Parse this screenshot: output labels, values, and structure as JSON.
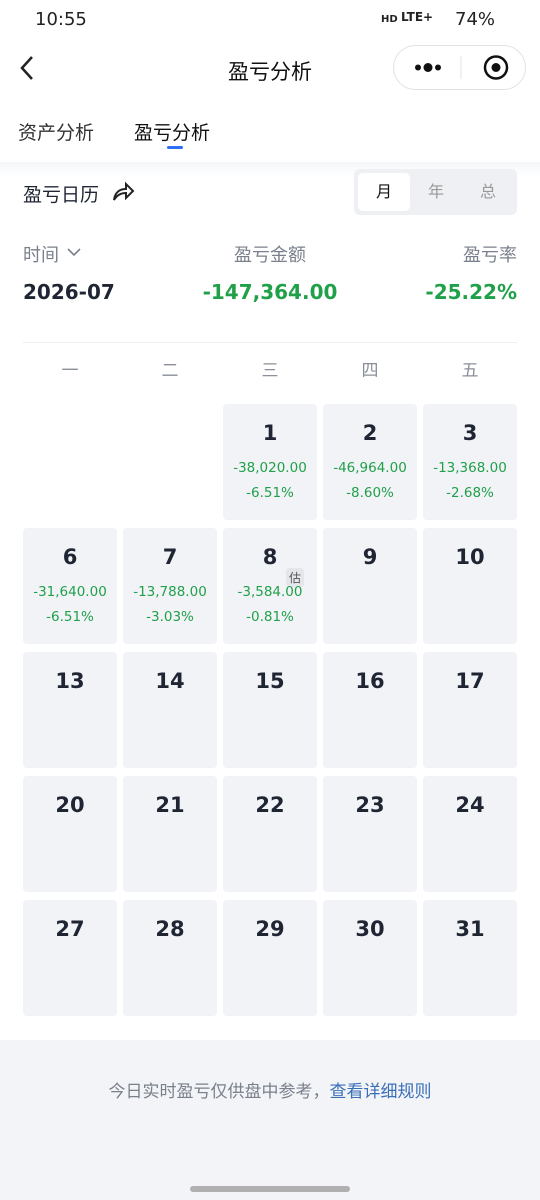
{
  "status_bar": {
    "time": "10:55",
    "hd": "HD",
    "network": "LTE+",
    "battery": "74%"
  },
  "nav": {
    "title": "盈亏分析"
  },
  "tabs": {
    "items": [
      "资产分析",
      "盈亏分析"
    ],
    "active": 1
  },
  "calendar_header": {
    "title": "盈亏日历",
    "periods": [
      "月",
      "年",
      "总"
    ],
    "active_period": 0
  },
  "summary": {
    "time_label": "时间",
    "amount_label": "盈亏金额",
    "rate_label": "盈亏率",
    "period": "2026-07",
    "amount": "-147,364.00",
    "rate": "-25.22%"
  },
  "weekdays": [
    "一",
    "二",
    "三",
    "四",
    "五"
  ],
  "days": [
    {
      "day": 1,
      "pnl": "-38,020.00",
      "rate": "-6.51%"
    },
    {
      "day": 2,
      "pnl": "-46,964.00",
      "rate": "-8.60%"
    },
    {
      "day": 3,
      "pnl": "-13,368.00",
      "rate": "-2.68%"
    },
    {
      "day": 6,
      "pnl": "-31,640.00",
      "rate": "-6.51%"
    },
    {
      "day": 7,
      "pnl": "-13,788.00",
      "rate": "-3.03%"
    },
    {
      "day": 8,
      "pnl": "-3,584.00",
      "rate": "-0.81%",
      "badge": "估"
    },
    {
      "day": 9
    },
    {
      "day": 10
    },
    {
      "day": 13
    },
    {
      "day": 14
    },
    {
      "day": 15
    },
    {
      "day": 16
    },
    {
      "day": 17
    },
    {
      "day": 20
    },
    {
      "day": 21
    },
    {
      "day": 22
    },
    {
      "day": 23
    },
    {
      "day": 24
    },
    {
      "day": 27
    },
    {
      "day": 28
    },
    {
      "day": 29
    },
    {
      "day": 30
    },
    {
      "day": 31
    }
  ],
  "footer": {
    "note": "今日实时盈亏仅供盘中参考，",
    "link": "查看详细规则"
  }
}
